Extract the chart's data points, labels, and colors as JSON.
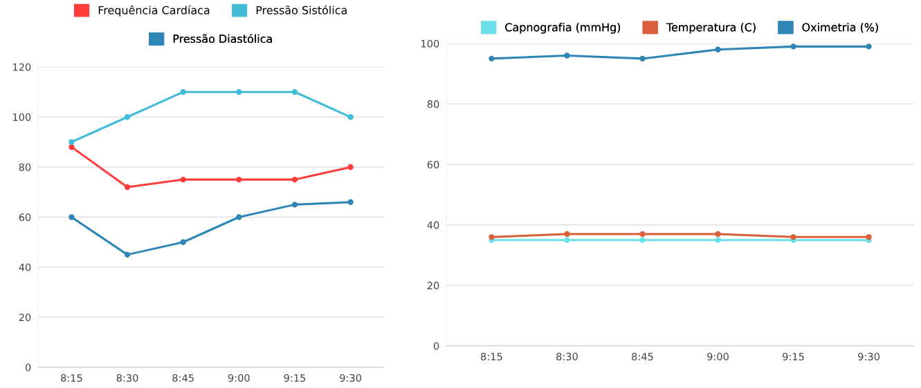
{
  "chart_data": [
    {
      "type": "line",
      "categories": [
        "8:15",
        "8:30",
        "8:45",
        "9:00",
        "9:15",
        "9:30"
      ],
      "ylim": [
        0,
        120
      ],
      "yticks": [
        0,
        20,
        40,
        60,
        80,
        100,
        120
      ],
      "grid": "y",
      "legend": "top",
      "marker": "circle",
      "series": [
        {
          "name": "Frequência Cardíaca",
          "color": "#ff3b3b",
          "values": [
            88,
            72,
            75,
            75,
            75,
            80
          ]
        },
        {
          "name": "Pressão Sistólica",
          "color": "#40bcd8",
          "values": [
            90,
            100,
            110,
            110,
            110,
            100
          ]
        },
        {
          "name": "Pressão Diastólica",
          "color": "#2e86b5",
          "values": [
            60,
            45,
            50,
            60,
            65,
            66
          ]
        }
      ]
    },
    {
      "type": "line",
      "categories": [
        "8:15",
        "8:30",
        "8:45",
        "9:00",
        "9:15",
        "9:30"
      ],
      "ylim": [
        0,
        100
      ],
      "yticks": [
        0,
        20,
        40,
        60,
        80,
        100
      ],
      "grid": "y",
      "legend": "top",
      "marker": "circle",
      "series": [
        {
          "name": "Capnografia (mmHg)",
          "color": "#6be0e8",
          "values": [
            35,
            35,
            35,
            35,
            35,
            35
          ]
        },
        {
          "name": "Temperatura (C)",
          "color": "#d9603b",
          "values": [
            36,
            37,
            37,
            37,
            36,
            36
          ]
        },
        {
          "name": "Oximetria (%)",
          "color": "#2f86b6",
          "values": [
            95,
            96,
            95,
            98,
            99,
            99
          ]
        }
      ]
    }
  ]
}
